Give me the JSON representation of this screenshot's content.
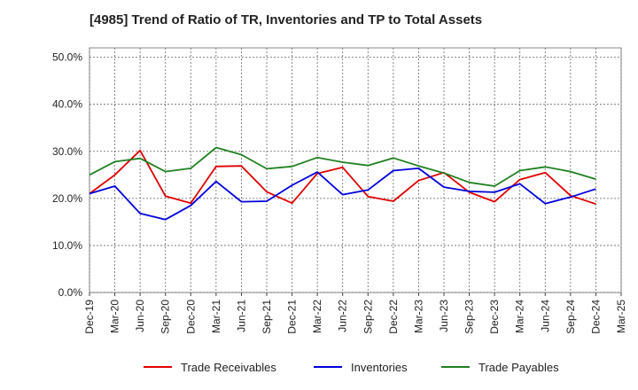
{
  "chart_data": {
    "type": "line",
    "title": "[4985]  Trend of Ratio of TR, Inventories and TP to Total Assets",
    "x": [
      "Dec-19",
      "Mar-20",
      "Jun-20",
      "Sep-20",
      "Dec-20",
      "Mar-21",
      "Jun-21",
      "Sep-21",
      "Dec-21",
      "Mar-22",
      "Jun-22",
      "Sep-22",
      "Dec-22",
      "Mar-23",
      "Jun-23",
      "Sep-23",
      "Dec-23",
      "Mar-24",
      "Jun-24",
      "Sep-24",
      "Dec-24"
    ],
    "x_ticks": [
      "Dec-19",
      "Mar-20",
      "Jun-20",
      "Sep-20",
      "Dec-20",
      "Mar-21",
      "Jun-21",
      "Sep-21",
      "Dec-21",
      "Mar-22",
      "Jun-22",
      "Sep-22",
      "Dec-22",
      "Mar-23",
      "Jun-23",
      "Sep-23",
      "Dec-23",
      "Mar-24",
      "Jun-24",
      "Sep-24",
      "Dec-24",
      "Mar-25"
    ],
    "ylim": [
      0,
      52
    ],
    "yticks": [
      0,
      10,
      20,
      30,
      40,
      50
    ],
    "ytick_labels": [
      "0.0%",
      "10.0%",
      "20.0%",
      "30.0%",
      "40.0%",
      "50.0%"
    ],
    "grid": true,
    "legend_position": "bottom",
    "series": [
      {
        "name": "Trade Receivables",
        "color": "#e00000",
        "values": [
          21.0,
          25.0,
          30.2,
          20.5,
          19.0,
          26.8,
          26.9,
          21.4,
          19.0,
          25.3,
          26.6,
          20.4,
          19.4,
          23.8,
          25.5,
          21.3,
          19.3,
          24.0,
          25.5,
          20.6,
          18.8
        ]
      },
      {
        "name": "Inventories",
        "color": "#0000dd",
        "values": [
          21.0,
          22.6,
          16.8,
          15.5,
          18.5,
          23.6,
          19.3,
          19.4,
          22.8,
          25.6,
          20.8,
          21.8,
          25.9,
          26.4,
          22.4,
          21.5,
          21.3,
          23.1,
          18.9,
          20.3,
          22.0
        ]
      },
      {
        "name": "Trade Payables",
        "color": "#208020",
        "values": [
          25.0,
          27.8,
          28.5,
          25.7,
          26.4,
          30.8,
          29.3,
          26.3,
          26.8,
          28.7,
          27.7,
          27.0,
          28.6,
          26.9,
          25.4,
          23.4,
          22.6,
          25.9,
          26.7,
          25.7,
          24.1
        ]
      }
    ]
  }
}
